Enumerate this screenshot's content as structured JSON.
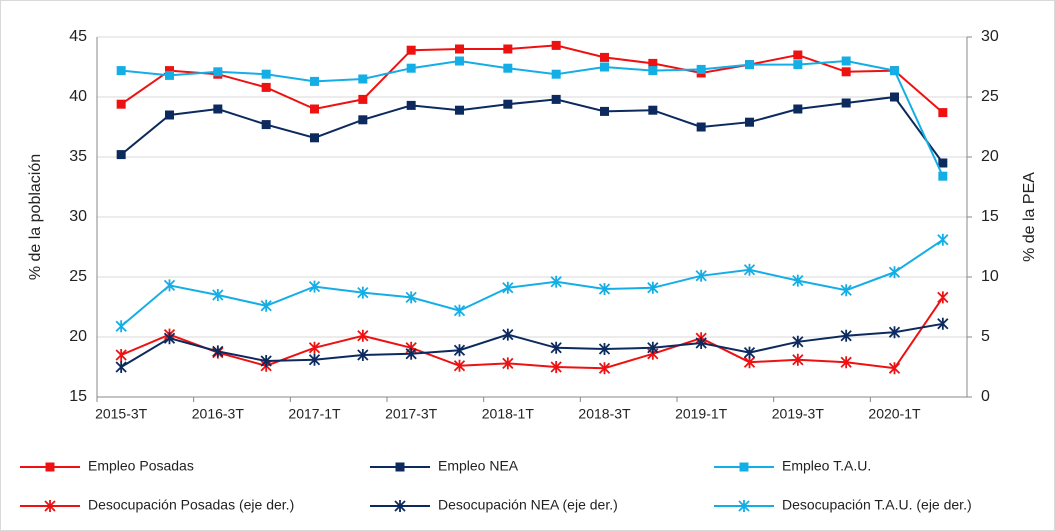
{
  "chart_data": {
    "type": "line",
    "categories": [
      "2015-3T",
      null,
      "2016-3T",
      null,
      "2017-1T",
      null,
      "2017-3T",
      null,
      "2018-1T",
      null,
      "2018-3T",
      null,
      "2019-1T",
      null,
      "2019-3T",
      null,
      "2020-1T",
      null
    ],
    "ylabel": "% de la población",
    "y2label": "% de la PEA",
    "ylim": [
      15,
      45
    ],
    "yticks": [
      15,
      20,
      25,
      30,
      35,
      40,
      45
    ],
    "y2lim": [
      0,
      30
    ],
    "y2ticks": [
      0,
      5,
      10,
      15,
      20,
      25,
      30
    ],
    "grid": true,
    "legend": "bottom",
    "series": [
      {
        "name": "Empleo Posadas",
        "color": "#ee1111",
        "marker": "square",
        "values": [
          39.4,
          42.2,
          41.9,
          40.8,
          39.0,
          39.8,
          43.9,
          44.0,
          44.0,
          44.3,
          43.3,
          42.8,
          42.0,
          42.7,
          43.5,
          42.1,
          42.2,
          38.7
        ]
      },
      {
        "name": "Empleo NEA",
        "color": "#0c2a5e",
        "marker": "square",
        "values": [
          35.2,
          38.5,
          39.0,
          37.7,
          36.6,
          38.1,
          39.3,
          38.9,
          39.4,
          39.8,
          38.8,
          38.9,
          37.5,
          37.9,
          39.0,
          39.5,
          40.0,
          34.5
        ]
      },
      {
        "name": "Empleo T.A.U.",
        "color": "#14aee6",
        "marker": "square",
        "values": [
          42.2,
          41.8,
          42.1,
          41.9,
          41.3,
          41.5,
          42.4,
          43.0,
          42.4,
          41.9,
          42.5,
          42.2,
          42.3,
          42.7,
          42.7,
          43.0,
          42.2,
          33.4
        ]
      },
      {
        "name": "Desocupación Posadas (eje der.)",
        "color": "#ee1111",
        "marker": "star",
        "axis": "y2",
        "values": [
          3.5,
          5.2,
          3.7,
          2.6,
          4.1,
          5.1,
          4.1,
          2.6,
          2.8,
          2.5,
          2.4,
          3.6,
          4.9,
          2.9,
          3.1,
          2.9,
          2.4,
          8.3
        ]
      },
      {
        "name": "Desocupación NEA (eje der.)",
        "color": "#0c2a5e",
        "marker": "star",
        "axis": "y2",
        "values": [
          2.5,
          4.9,
          3.8,
          3.0,
          3.1,
          3.5,
          3.6,
          3.9,
          5.2,
          4.1,
          4.0,
          4.1,
          4.5,
          3.7,
          4.6,
          5.1,
          5.4,
          6.1
        ]
      },
      {
        "name": "Desocupación T.A.U. (eje der.)",
        "color": "#14aee6",
        "marker": "star",
        "axis": "y2",
        "values": [
          5.9,
          9.3,
          8.5,
          7.6,
          9.2,
          8.7,
          8.3,
          7.2,
          9.1,
          9.6,
          9.0,
          9.1,
          10.1,
          10.6,
          9.7,
          8.9,
          10.4,
          13.1
        ]
      }
    ]
  }
}
